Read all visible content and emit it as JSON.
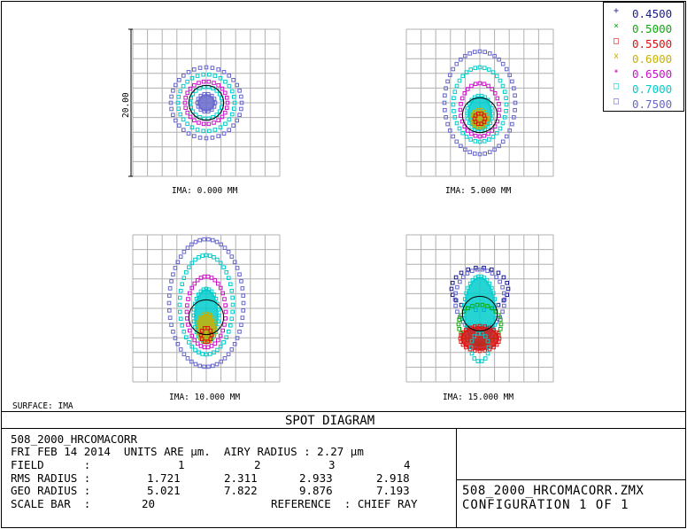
{
  "surface_label": "SURFACE: IMA",
  "scale_axis_label": "20.00",
  "title": "SPOT DIAGRAM",
  "info": {
    "file": "508_2000_HRCOMACORR",
    "date_units": "FRI FEB 14 2014  UNITS ARE µm.  AIRY RADIUS : 2.27 µm",
    "field_label": "FIELD      :",
    "rms_label": "RMS RADIUS :",
    "geo_label": "GEO RADIUS :",
    "scale_label": "SCALE BAR  :",
    "scale_value": "20",
    "reference": "REFERENCE  : CHIEF RAY",
    "fields": [
      "1",
      "2",
      "3",
      "4"
    ],
    "rms": [
      "1.721",
      "2.311",
      "2.933",
      "2.918"
    ],
    "geo": [
      "5.021",
      "7.822",
      "9.876",
      "7.193"
    ]
  },
  "file_box": {
    "filename": "508_2000_HRCOMACORR.ZMX",
    "config": "CONFIGURATION 1 OF 1"
  },
  "legend": [
    {
      "symbol": "+",
      "label": "0.4500"
    },
    {
      "symbol": "×",
      "label": "0.5000"
    },
    {
      "symbol": "□",
      "label": "0.5500"
    },
    {
      "symbol": "x",
      "label": "0.6000"
    },
    {
      "symbol": "✴",
      "label": "0.6500"
    },
    {
      "symbol": "□",
      "label": "0.7000"
    },
    {
      "symbol": "□",
      "label": "0.7500"
    }
  ],
  "colors": {
    "0.4500": "#1b1b8f",
    "0.5000": "#11aa11",
    "0.5500": "#dd1111",
    "0.6000": "#c8b000",
    "0.6500": "#cc11cc",
    "0.7000": "#00cccc",
    "0.7500": "#6666cc",
    "grid": "#b0b0b0"
  },
  "chart_data": {
    "type": "scatter",
    "units": "µm",
    "airy_radius": 2.27,
    "scale_bar": 20,
    "fields": [
      {
        "label": "IMA: 0.000 MM",
        "rms_radius": 1.721,
        "geo_radius": 5.021
      },
      {
        "label": "IMA: 5.000 MM",
        "rms_radius": 2.311,
        "geo_radius": 7.822
      },
      {
        "label": "IMA: 10.000 MM",
        "rms_radius": 2.933,
        "geo_radius": 9.876
      },
      {
        "label": "IMA: 15.000 MM",
        "rms_radius": 2.918,
        "geo_radius": 7.193
      }
    ]
  }
}
